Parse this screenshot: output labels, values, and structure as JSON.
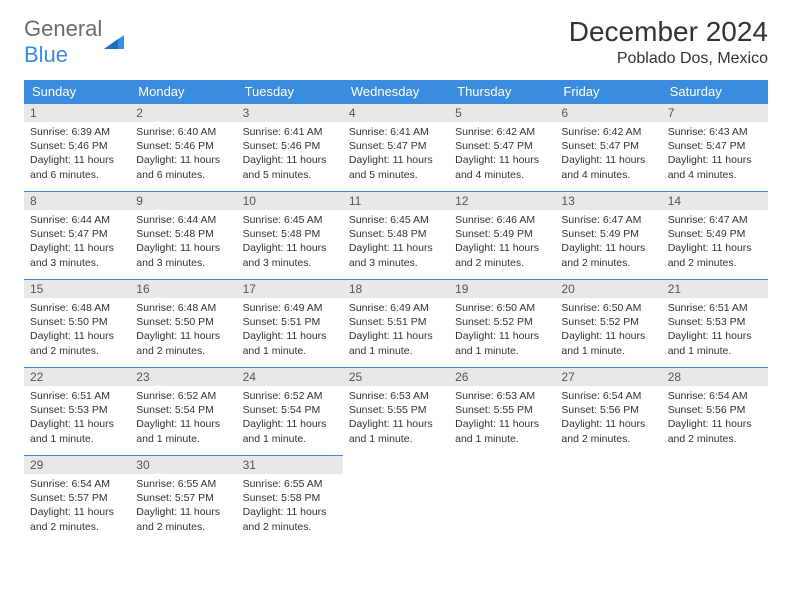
{
  "logo": {
    "general": "General",
    "blue": "Blue"
  },
  "title": {
    "month": "December 2024",
    "location": "Poblado Dos, Mexico"
  },
  "colors": {
    "header_bg": "#3a8dde",
    "header_text": "#ffffff",
    "daynum_bg": "#e8e8e8",
    "border": "#3a8dde",
    "text": "#333333",
    "logo_gray": "#6b6b6b",
    "logo_blue": "#3a8dde",
    "background": "#ffffff"
  },
  "typography": {
    "month_fontsize": 28,
    "location_fontsize": 16,
    "day_header_fontsize": 13,
    "cell_fontsize": 10.5
  },
  "daysOfWeek": [
    "Sunday",
    "Monday",
    "Tuesday",
    "Wednesday",
    "Thursday",
    "Friday",
    "Saturday"
  ],
  "weeks": [
    [
      {
        "n": "1",
        "sr": "6:39 AM",
        "ss": "5:46 PM",
        "dl": "11 hours and 6 minutes."
      },
      {
        "n": "2",
        "sr": "6:40 AM",
        "ss": "5:46 PM",
        "dl": "11 hours and 6 minutes."
      },
      {
        "n": "3",
        "sr": "6:41 AM",
        "ss": "5:46 PM",
        "dl": "11 hours and 5 minutes."
      },
      {
        "n": "4",
        "sr": "6:41 AM",
        "ss": "5:47 PM",
        "dl": "11 hours and 5 minutes."
      },
      {
        "n": "5",
        "sr": "6:42 AM",
        "ss": "5:47 PM",
        "dl": "11 hours and 4 minutes."
      },
      {
        "n": "6",
        "sr": "6:42 AM",
        "ss": "5:47 PM",
        "dl": "11 hours and 4 minutes."
      },
      {
        "n": "7",
        "sr": "6:43 AM",
        "ss": "5:47 PM",
        "dl": "11 hours and 4 minutes."
      }
    ],
    [
      {
        "n": "8",
        "sr": "6:44 AM",
        "ss": "5:47 PM",
        "dl": "11 hours and 3 minutes."
      },
      {
        "n": "9",
        "sr": "6:44 AM",
        "ss": "5:48 PM",
        "dl": "11 hours and 3 minutes."
      },
      {
        "n": "10",
        "sr": "6:45 AM",
        "ss": "5:48 PM",
        "dl": "11 hours and 3 minutes."
      },
      {
        "n": "11",
        "sr": "6:45 AM",
        "ss": "5:48 PM",
        "dl": "11 hours and 3 minutes."
      },
      {
        "n": "12",
        "sr": "6:46 AM",
        "ss": "5:49 PM",
        "dl": "11 hours and 2 minutes."
      },
      {
        "n": "13",
        "sr": "6:47 AM",
        "ss": "5:49 PM",
        "dl": "11 hours and 2 minutes."
      },
      {
        "n": "14",
        "sr": "6:47 AM",
        "ss": "5:49 PM",
        "dl": "11 hours and 2 minutes."
      }
    ],
    [
      {
        "n": "15",
        "sr": "6:48 AM",
        "ss": "5:50 PM",
        "dl": "11 hours and 2 minutes."
      },
      {
        "n": "16",
        "sr": "6:48 AM",
        "ss": "5:50 PM",
        "dl": "11 hours and 2 minutes."
      },
      {
        "n": "17",
        "sr": "6:49 AM",
        "ss": "5:51 PM",
        "dl": "11 hours and 1 minute."
      },
      {
        "n": "18",
        "sr": "6:49 AM",
        "ss": "5:51 PM",
        "dl": "11 hours and 1 minute."
      },
      {
        "n": "19",
        "sr": "6:50 AM",
        "ss": "5:52 PM",
        "dl": "11 hours and 1 minute."
      },
      {
        "n": "20",
        "sr": "6:50 AM",
        "ss": "5:52 PM",
        "dl": "11 hours and 1 minute."
      },
      {
        "n": "21",
        "sr": "6:51 AM",
        "ss": "5:53 PM",
        "dl": "11 hours and 1 minute."
      }
    ],
    [
      {
        "n": "22",
        "sr": "6:51 AM",
        "ss": "5:53 PM",
        "dl": "11 hours and 1 minute."
      },
      {
        "n": "23",
        "sr": "6:52 AM",
        "ss": "5:54 PM",
        "dl": "11 hours and 1 minute."
      },
      {
        "n": "24",
        "sr": "6:52 AM",
        "ss": "5:54 PM",
        "dl": "11 hours and 1 minute."
      },
      {
        "n": "25",
        "sr": "6:53 AM",
        "ss": "5:55 PM",
        "dl": "11 hours and 1 minute."
      },
      {
        "n": "26",
        "sr": "6:53 AM",
        "ss": "5:55 PM",
        "dl": "11 hours and 1 minute."
      },
      {
        "n": "27",
        "sr": "6:54 AM",
        "ss": "5:56 PM",
        "dl": "11 hours and 2 minutes."
      },
      {
        "n": "28",
        "sr": "6:54 AM",
        "ss": "5:56 PM",
        "dl": "11 hours and 2 minutes."
      }
    ],
    [
      {
        "n": "29",
        "sr": "6:54 AM",
        "ss": "5:57 PM",
        "dl": "11 hours and 2 minutes."
      },
      {
        "n": "30",
        "sr": "6:55 AM",
        "ss": "5:57 PM",
        "dl": "11 hours and 2 minutes."
      },
      {
        "n": "31",
        "sr": "6:55 AM",
        "ss": "5:58 PM",
        "dl": "11 hours and 2 minutes."
      },
      null,
      null,
      null,
      null
    ]
  ],
  "labels": {
    "sunrise": "Sunrise: ",
    "sunset": "Sunset: ",
    "daylight": "Daylight: "
  }
}
